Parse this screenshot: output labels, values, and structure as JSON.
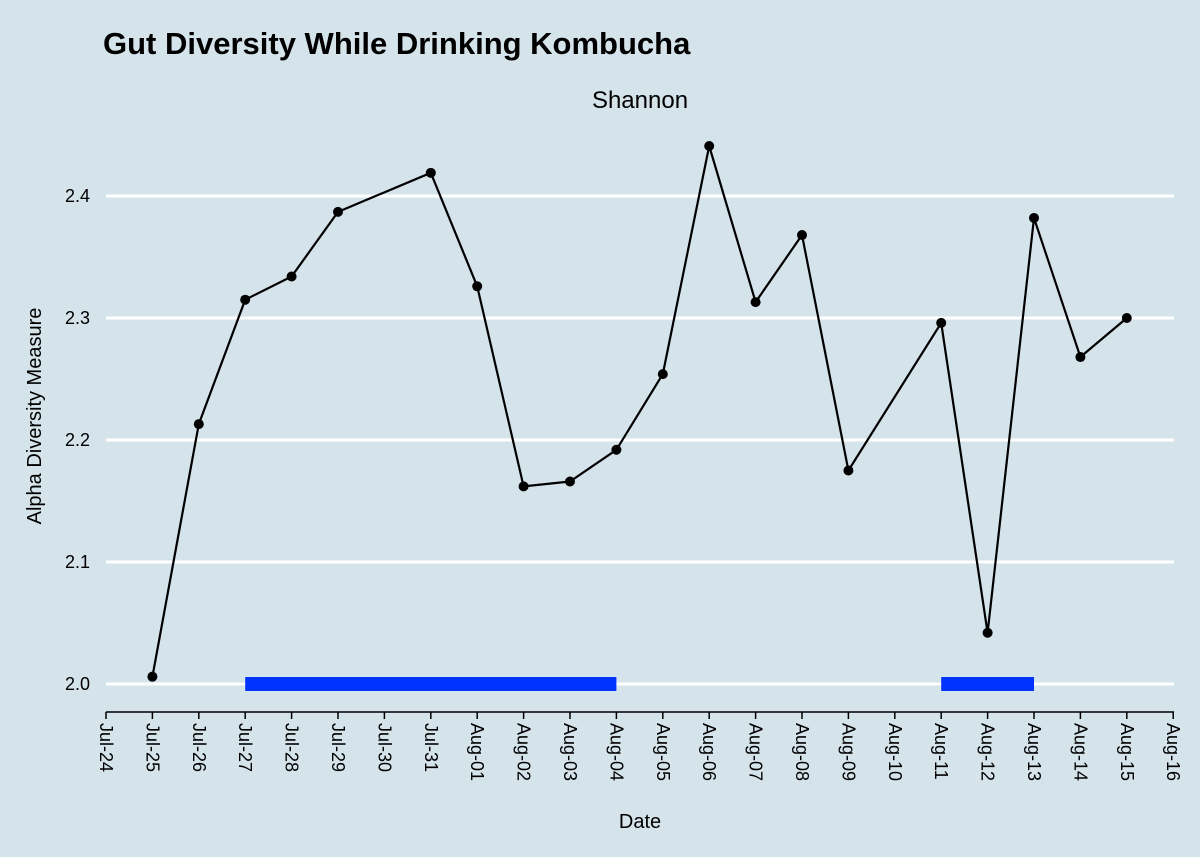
{
  "colors": {
    "background": "#d5e3ea",
    "gridline": "#ffffff",
    "series_line": "#000000",
    "highlight_bar": "#0033ff"
  },
  "chart_data": {
    "type": "line",
    "title": "Gut Diversity While Drinking Kombucha",
    "subtitle": "Shannon",
    "xlabel": "Date",
    "ylabel": "Alpha Diversity Measure",
    "x_tick_labels": [
      "Jul-24",
      "Jul-25",
      "Jul-26",
      "Jul-27",
      "Jul-28",
      "Jul-29",
      "Jul-30",
      "Jul-31",
      "Aug-01",
      "Aug-02",
      "Aug-03",
      "Aug-04",
      "Aug-05",
      "Aug-06",
      "Aug-07",
      "Aug-08",
      "Aug-09",
      "Aug-10",
      "Aug-11",
      "Aug-12",
      "Aug-13",
      "Aug-14",
      "Aug-15",
      "Aug-16"
    ],
    "y_tick_labels": [
      "2.0",
      "2.1",
      "2.2",
      "2.3",
      "2.4"
    ],
    "y_ticks": [
      2.0,
      2.1,
      2.2,
      2.3,
      2.4
    ],
    "ylim": [
      1.98,
      2.47
    ],
    "grid": "horizontal",
    "x": [
      "Jul-25",
      "Jul-26",
      "Jul-27",
      "Jul-28",
      "Jul-29",
      "Jul-31",
      "Aug-01",
      "Aug-02",
      "Aug-03",
      "Aug-04",
      "Aug-05",
      "Aug-06",
      "Aug-07",
      "Aug-08",
      "Aug-09",
      "Aug-11",
      "Aug-12",
      "Aug-13",
      "Aug-14",
      "Aug-15"
    ],
    "values": [
      2.006,
      2.213,
      2.315,
      2.334,
      2.387,
      2.419,
      2.326,
      2.162,
      2.166,
      2.192,
      2.254,
      2.441,
      2.313,
      2.368,
      2.175,
      2.296,
      2.042,
      2.382,
      2.268,
      2.3
    ],
    "kombucha_periods": [
      {
        "start": "Jul-27",
        "end": "Aug-04"
      },
      {
        "start": "Aug-11",
        "end": "Aug-13"
      }
    ]
  }
}
